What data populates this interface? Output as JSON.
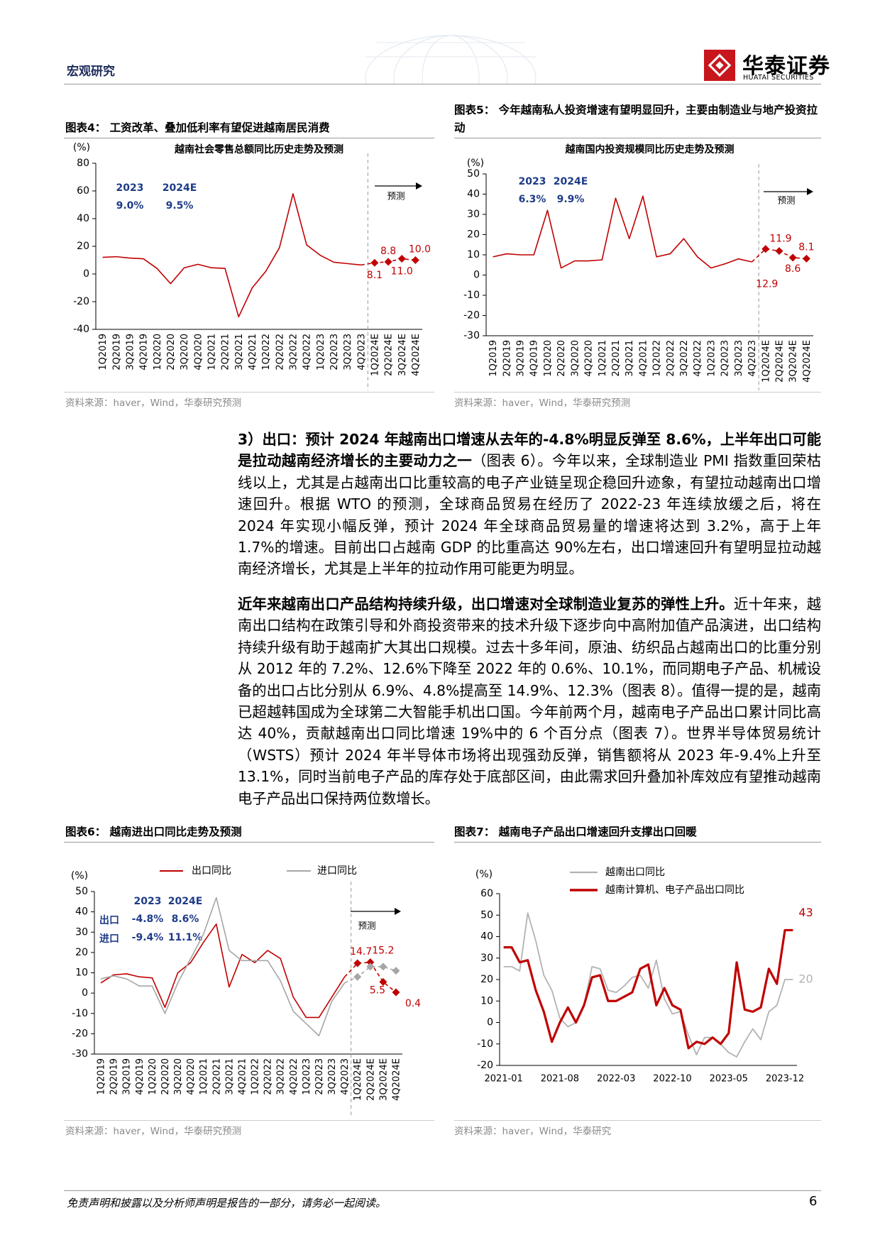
{
  "header": {
    "section": "宏观研究",
    "brand": "华泰证券",
    "brand_en": "HUATAI SECURITIES"
  },
  "figures": [
    {
      "caption": "图表4：  工资改革、叠加低利率有望促进越南居民消费",
      "source": "资料来源：haver，Wind，华泰研究预测"
    },
    {
      "caption": "图表5：  今年越南私人投资增速有望明显回升，主要由制造业与地产投资拉动",
      "source": "资料来源：haver，Wind，华泰研究预测"
    },
    {
      "caption": "图表6：  越南进出口同比走势及预测",
      "source": "资料来源：haver，Wind，华泰研究预测"
    },
    {
      "caption": "图表7：  越南电子产品出口增速回升支撑出口回暖",
      "source": "资料来源：haver，Wind，华泰研究"
    }
  ],
  "paragraphs": [
    {
      "bold": "3）出口：预计 2024 年越南出口增速从去年的-4.8%明显反弹至 8.6%，上半年出口可能是拉动越南经济增长的主要动力之一",
      "text": "（图表 6）。今年以来，全球制造业 PMI 指数重回荣枯线以上，尤其是占越南出口比重较高的电子产业链呈现企稳回升迹象，有望拉动越南出口增速回升。根据 WTO 的预测，全球商品贸易在经历了 2022-23 年连续放缓之后，将在 2024 年实现小幅反弹，预计 2024 年全球商品贸易量的增速将达到 3.2%，高于上年 1.7%的增速。目前出口占越南 GDP 的比重高达 90%左右，出口增速回升有望明显拉动越南经济增长，尤其是上半年的拉动作用可能更为明显。"
    },
    {
      "bold": "近年来越南出口产品结构持续升级，出口增速对全球制造业复苏的弹性上升。",
      "text": "近十年来，越南出口结构在政策引导和外商投资带来的技术升级下逐步向中高附加值产品演进，出口结构持续升级有助于越南扩大其出口规模。过去十多年间，原油、纺织品占越南出口的比重分别从 2012 年的 7.2%、12.6%下降至 2022 年的 0.6%、10.1%，而同期电子产品、机械设备的出口占比分别从 6.9%、4.8%提高至 14.9%、12.3%（图表 8）。值得一提的是，越南已超越韩国成为全球第二大智能手机出口国。今年前两个月，越南电子产品出口累计同比高达 40%，贡献越南出口同比增速 19%中的 6 个百分点（图表 7）。世界半导体贸易统计（WSTS）预计 2024 年半导体市场将出现强劲反弹，销售额将从 2023 年-9.4%上升至 13.1%，同时当前电子产品的库存处于底部区间，由此需求回升叠加补库效应有望推动越南电子产品出口保持两位数增长。"
    }
  ],
  "footer": {
    "disclaimer": "免责声明和披露以及分析师声明是报告的一部分，请务必一起阅读。",
    "page": "6"
  },
  "chart_data": [
    {
      "type": "line",
      "title": "越南社会零售总额同比历史走势及预测",
      "y_label": "(%)",
      "categories": [
        "1Q2019",
        "2Q2019",
        "3Q2019",
        "4Q2019",
        "1Q2020",
        "2Q2020",
        "3Q2020",
        "4Q2020",
        "1Q2021",
        "2Q2021",
        "3Q2021",
        "4Q2021",
        "1Q2022",
        "2Q2022",
        "3Q2022",
        "4Q2022",
        "1Q2023",
        "2Q2023",
        "3Q2023",
        "4Q2023",
        "1Q2024E",
        "2Q2024E",
        "3Q2024E",
        "4Q2024E"
      ],
      "series": [
        {
          "color": "#c00000",
          "values": [
            12,
            12.5,
            11.5,
            11,
            4,
            -7,
            4.5,
            7,
            4.5,
            4,
            -31,
            -10,
            2,
            19,
            58,
            21,
            13.5,
            8.5,
            7.5,
            6.5,
            8.1,
            8.8,
            11,
            10
          ],
          "value_labels": [
            null,
            null,
            null,
            null,
            null,
            null,
            null,
            null,
            null,
            null,
            null,
            null,
            null,
            null,
            null,
            null,
            null,
            null,
            null,
            null,
            "8.1",
            "8.8",
            "11.0",
            "10.0"
          ]
        }
      ],
      "forecast_from": "1Q2024E",
      "forecast_label": "预测",
      "annotations": [
        "2023",
        "2024E",
        "9.0%",
        "9.5%"
      ],
      "ylim": [
        -40,
        80
      ],
      "yticks": [
        -40,
        -20,
        0,
        20,
        40,
        60,
        80
      ]
    },
    {
      "type": "line",
      "title": "越南国内投资规模同比历史走势及预测",
      "y_label": "(%)",
      "categories": [
        "1Q2019",
        "2Q2019",
        "3Q2019",
        "4Q2019",
        "1Q2020",
        "2Q2020",
        "3Q2020",
        "4Q2020",
        "1Q2021",
        "2Q2021",
        "3Q2021",
        "4Q2021",
        "1Q2022",
        "2Q2022",
        "3Q2022",
        "4Q2022",
        "1Q2023",
        "2Q2023",
        "3Q2023",
        "4Q2023",
        "1Q2024E",
        "2Q2024E",
        "3Q2024E",
        "4Q2024E"
      ],
      "series": [
        {
          "color": "#c00000",
          "values": [
            9,
            10.5,
            10,
            10,
            32,
            3.5,
            7,
            7,
            7.5,
            38,
            18,
            39,
            9,
            10.5,
            18,
            9,
            3.5,
            5.5,
            8,
            6.5,
            12.9,
            11.9,
            8.6,
            8.1
          ],
          "value_labels": [
            null,
            null,
            null,
            null,
            null,
            null,
            null,
            null,
            null,
            null,
            null,
            null,
            null,
            null,
            null,
            null,
            null,
            null,
            null,
            null,
            "12.9",
            "11.9",
            "8.6",
            "8.1"
          ]
        }
      ],
      "forecast_from": "1Q2024E",
      "forecast_label": "预测",
      "annotations": [
        "2023",
        "2024E",
        "6.3%",
        "9.9%"
      ],
      "ylim": [
        -30,
        50
      ],
      "yticks": [
        -30,
        -20,
        -10,
        0,
        10,
        20,
        30,
        40,
        50
      ]
    },
    {
      "type": "line",
      "y_label": "(%)",
      "categories": [
        "1Q2019",
        "2Q2019",
        "3Q2019",
        "4Q2019",
        "1Q2020",
        "2Q2020",
        "3Q2020",
        "4Q2020",
        "1Q2021",
        "2Q2021",
        "3Q2021",
        "4Q2021",
        "1Q2022",
        "2Q2022",
        "3Q2022",
        "4Q2022",
        "1Q2023",
        "2Q2023",
        "3Q2023",
        "4Q2023",
        "1Q2024E",
        "2Q2024E",
        "3Q2024E",
        "4Q2024E"
      ],
      "series": [
        {
          "name": "出口同比",
          "color": "#c00000",
          "values": [
            5,
            9,
            9.5,
            8,
            7.5,
            -7,
            10,
            15,
            25,
            34,
            3,
            19,
            15,
            21,
            17,
            -2,
            -12,
            -12,
            -2,
            8,
            14.7,
            15.2,
            5.5,
            0.4
          ],
          "value_labels": [
            null,
            null,
            null,
            null,
            null,
            null,
            null,
            null,
            null,
            null,
            null,
            null,
            null,
            null,
            null,
            null,
            null,
            null,
            null,
            null,
            "14.7",
            "15.2",
            "5.5",
            "0.4"
          ]
        },
        {
          "name": "进口同比",
          "color": "#a6a6a6",
          "values": [
            7,
            8.5,
            7,
            3.5,
            3.5,
            -10,
            5,
            17,
            29,
            47,
            21,
            16,
            16,
            16,
            6,
            -9,
            -15,
            -21,
            -4,
            5,
            8,
            13,
            13,
            11
          ]
        }
      ],
      "forecast_from": "1Q2024E",
      "forecast_label": "预测",
      "annotations": [
        "2023",
        "2024E",
        "出口",
        "-4.8%",
        "8.6%",
        "进口",
        "-9.4%",
        "11.1%"
      ],
      "legend": "top",
      "ylim": [
        -30,
        50
      ],
      "yticks": [
        -30,
        -20,
        -10,
        0,
        10,
        20,
        30,
        40,
        50
      ]
    },
    {
      "type": "line",
      "y_label": "(%)",
      "categories": [
        "2021-01",
        null,
        null,
        null,
        null,
        null,
        null,
        "2021-08",
        null,
        null,
        null,
        null,
        null,
        null,
        "2022-03",
        null,
        null,
        null,
        null,
        null,
        null,
        "2022-10",
        null,
        null,
        null,
        null,
        null,
        null,
        "2023-05",
        null,
        null,
        null,
        null,
        null,
        null,
        "2023-12",
        null
      ],
      "series": [
        {
          "name": "越南出口同比",
          "color": "#b3b3b3",
          "values": [
            26,
            26,
            24,
            51,
            38,
            22,
            15,
            2,
            -2,
            0,
            8,
            26,
            25,
            15,
            14,
            17,
            21,
            22,
            16,
            29,
            11,
            4,
            5,
            -6,
            -15,
            -7,
            -7,
            -10,
            -14,
            -16,
            -9,
            -3,
            -8,
            5,
            8,
            20,
            20
          ]
        },
        {
          "name": "越南计算机、电子产品出口同比",
          "color": "#c00000",
          "values": [
            35,
            35,
            28,
            29,
            15,
            5,
            -9,
            0,
            7,
            0,
            8,
            21,
            22,
            10,
            10,
            12,
            14,
            25,
            27,
            8,
            16,
            8,
            6,
            -12,
            -9,
            -10,
            -7,
            -10,
            -5,
            28,
            6,
            5,
            7,
            25,
            18,
            43,
            43
          ]
        }
      ],
      "legend": "top",
      "ylim": [
        -20,
        60
      ],
      "yticks": [
        -20,
        -10,
        0,
        10,
        20,
        30,
        40,
        50,
        60
      ]
    }
  ]
}
